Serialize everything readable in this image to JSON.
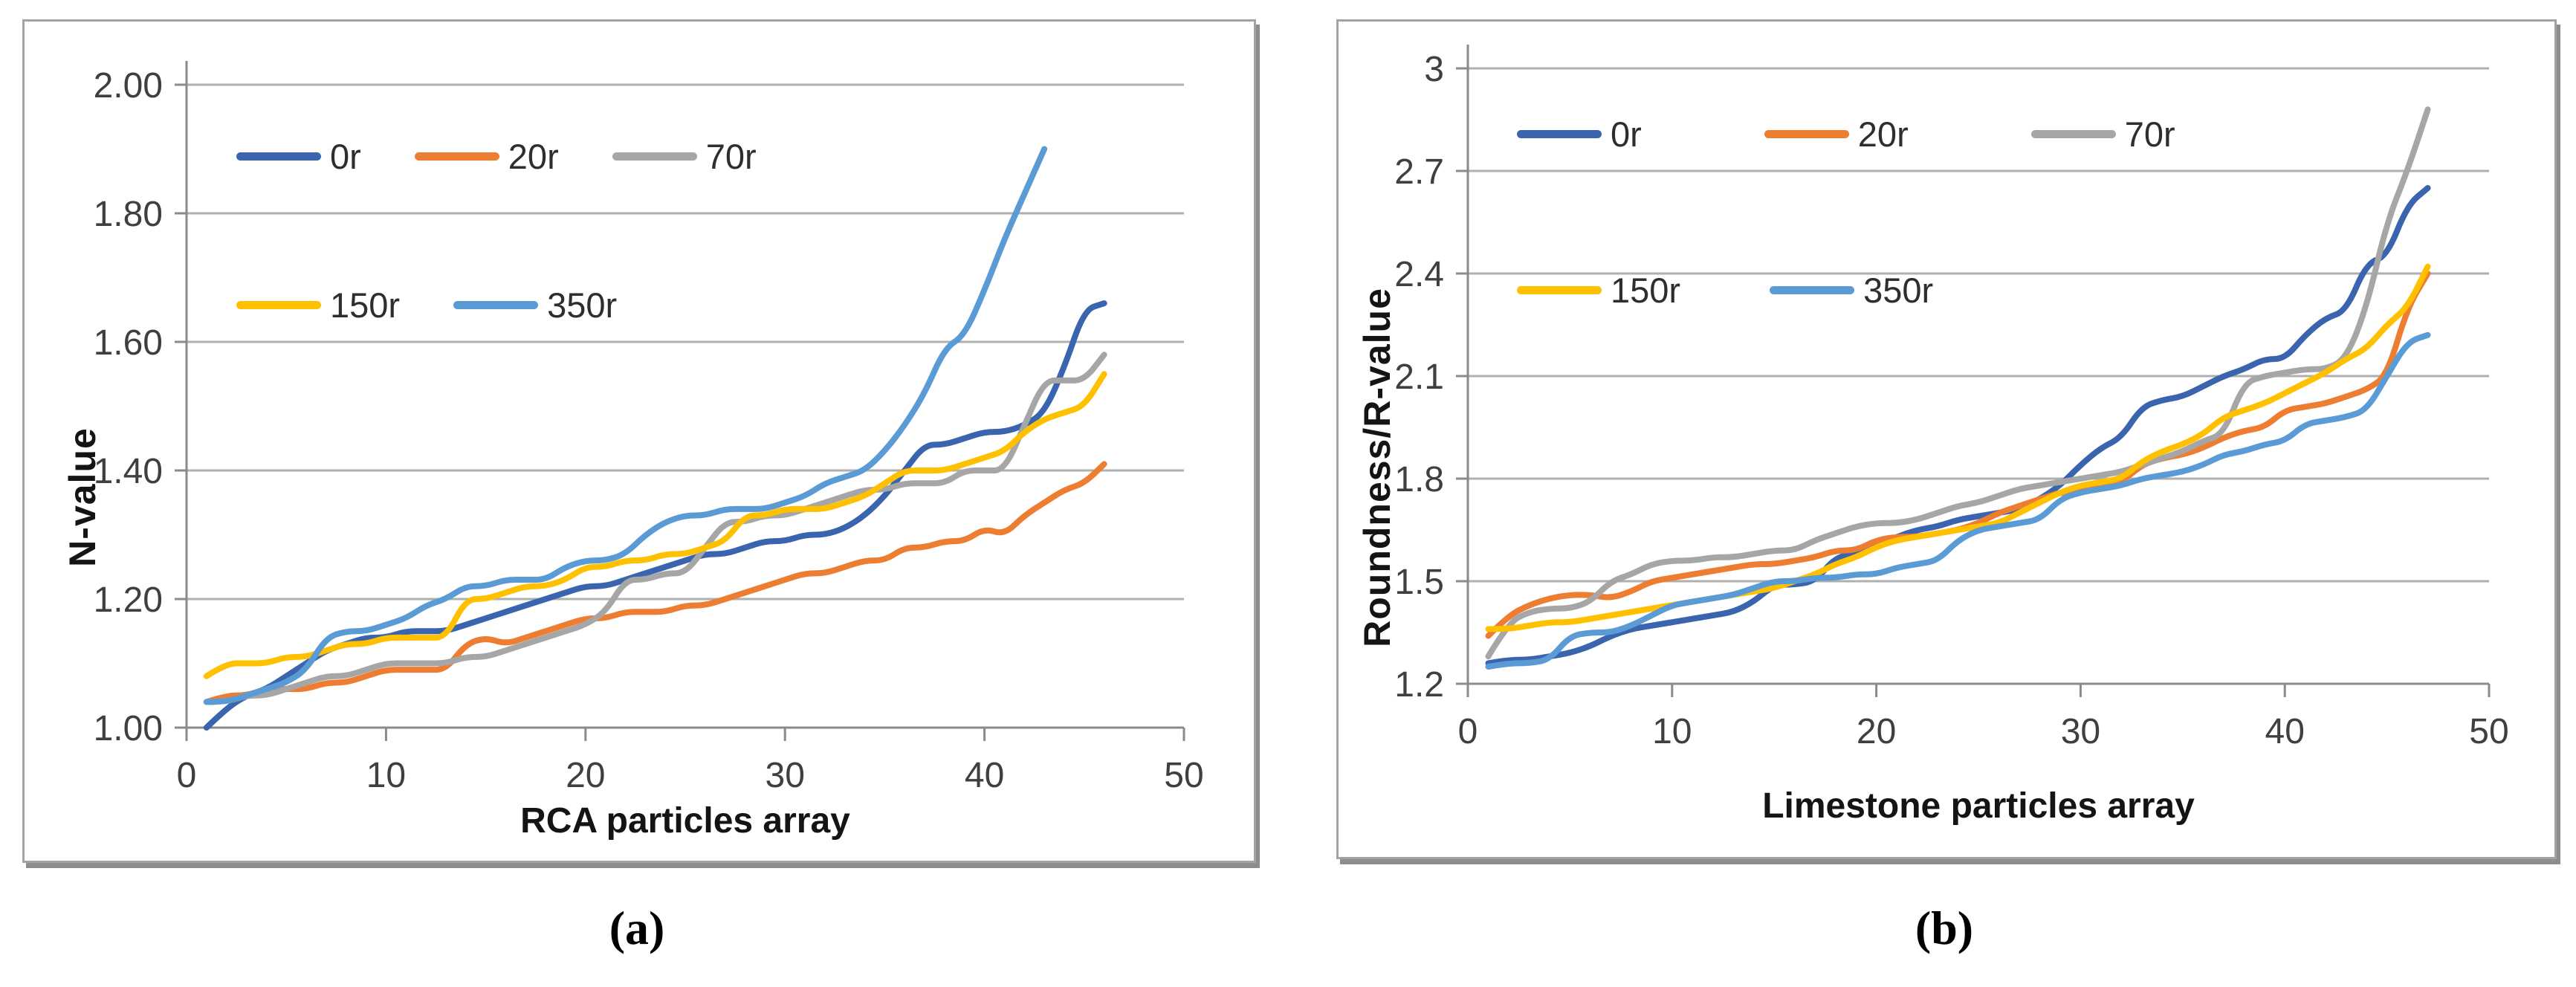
{
  "figure": {
    "panels": [
      {
        "caption": "(a)"
      },
      {
        "caption": "(b)"
      }
    ]
  },
  "chart_data": [
    {
      "type": "line",
      "title": "",
      "xlabel": "RCA particles array",
      "ylabel": "N-value",
      "x_start": 1,
      "xlim": [
        0,
        50
      ],
      "ylim": [
        1.0,
        2.0
      ],
      "xticks": [
        0,
        10,
        20,
        30,
        40,
        50
      ],
      "xtick_labels": [
        "0",
        "10",
        "20",
        "30",
        "40",
        "50"
      ],
      "yticks": [
        1.0,
        1.2,
        1.4,
        1.6,
        1.8,
        2.0
      ],
      "ytick_labels": [
        "1.00",
        "1.20",
        "1.40",
        "1.60",
        "1.80",
        "2.00"
      ],
      "grid": "horizontal",
      "legend_position": "inside-top-left",
      "series": [
        {
          "name": "0r",
          "color": "#3A64AE",
          "values": [
            1.0,
            1.03,
            1.05,
            1.06,
            1.08,
            1.1,
            1.12,
            1.13,
            1.14,
            1.14,
            1.15,
            1.15,
            1.15,
            1.16,
            1.17,
            1.18,
            1.19,
            1.2,
            1.21,
            1.22,
            1.22,
            1.23,
            1.24,
            1.25,
            1.26,
            1.27,
            1.27,
            1.28,
            1.29,
            1.29,
            1.3,
            1.3,
            1.31,
            1.33,
            1.36,
            1.4,
            1.44,
            1.44,
            1.45,
            1.46,
            1.46,
            1.47,
            1.49,
            1.56,
            1.65,
            1.66
          ]
        },
        {
          "name": "20r",
          "color": "#ED7D31",
          "values": [
            1.04,
            1.05,
            1.05,
            1.06,
            1.06,
            1.06,
            1.07,
            1.07,
            1.08,
            1.09,
            1.09,
            1.09,
            1.09,
            1.13,
            1.14,
            1.13,
            1.14,
            1.15,
            1.16,
            1.17,
            1.17,
            1.18,
            1.18,
            1.18,
            1.19,
            1.19,
            1.2,
            1.21,
            1.22,
            1.23,
            1.24,
            1.24,
            1.25,
            1.26,
            1.26,
            1.28,
            1.28,
            1.29,
            1.29,
            1.31,
            1.3,
            1.33,
            1.35,
            1.37,
            1.38,
            1.41
          ]
        },
        {
          "name": "70r",
          "color": "#A6A6A6",
          "values": [
            1.04,
            1.04,
            1.05,
            1.05,
            1.06,
            1.07,
            1.08,
            1.08,
            1.09,
            1.1,
            1.1,
            1.1,
            1.1,
            1.11,
            1.11,
            1.12,
            1.13,
            1.14,
            1.15,
            1.16,
            1.18,
            1.23,
            1.23,
            1.24,
            1.24,
            1.28,
            1.32,
            1.32,
            1.33,
            1.33,
            1.34,
            1.35,
            1.36,
            1.37,
            1.37,
            1.38,
            1.38,
            1.38,
            1.4,
            1.4,
            1.4,
            1.47,
            1.54,
            1.54,
            1.54,
            1.58
          ]
        },
        {
          "name": "150r",
          "color": "#FFC000",
          "values": [
            1.08,
            1.1,
            1.1,
            1.1,
            1.11,
            1.11,
            1.12,
            1.13,
            1.13,
            1.14,
            1.14,
            1.14,
            1.14,
            1.2,
            1.2,
            1.21,
            1.22,
            1.22,
            1.23,
            1.25,
            1.25,
            1.26,
            1.26,
            1.27,
            1.27,
            1.28,
            1.29,
            1.33,
            1.33,
            1.34,
            1.34,
            1.34,
            1.35,
            1.36,
            1.38,
            1.4,
            1.4,
            1.4,
            1.41,
            1.42,
            1.43,
            1.46,
            1.48,
            1.49,
            1.5,
            1.55
          ]
        },
        {
          "name": "350r",
          "color": "#5B9BD5",
          "values": [
            1.04,
            1.04,
            1.05,
            1.06,
            1.07,
            1.09,
            1.14,
            1.15,
            1.15,
            1.16,
            1.17,
            1.19,
            1.2,
            1.22,
            1.22,
            1.23,
            1.23,
            1.23,
            1.25,
            1.26,
            1.26,
            1.27,
            1.3,
            1.32,
            1.33,
            1.33,
            1.34,
            1.34,
            1.34,
            1.35,
            1.36,
            1.38,
            1.39,
            1.4,
            1.43,
            1.47,
            1.52,
            1.59,
            1.61,
            1.68,
            1.76,
            1.83,
            1.9
          ]
        }
      ]
    },
    {
      "type": "line",
      "title": "",
      "xlabel": "Limestone particles array",
      "ylabel": "Roundness/R-value",
      "x_start": 1,
      "xlim": [
        0,
        50
      ],
      "ylim": [
        1.2,
        3.0
      ],
      "xticks": [
        0,
        10,
        20,
        30,
        40,
        50
      ],
      "xtick_labels": [
        "0",
        "10",
        "20",
        "30",
        "40",
        "50"
      ],
      "yticks": [
        1.2,
        1.5,
        1.8,
        2.1,
        2.4,
        2.7,
        3.0
      ],
      "ytick_labels": [
        "1.2",
        "1.5",
        "1.8",
        "2.1",
        "2.4",
        "2.7",
        "3"
      ],
      "grid": "horizontal",
      "legend_position": "inside-top-left",
      "series": [
        {
          "name": "0r",
          "color": "#3A64AE",
          "values": [
            1.26,
            1.27,
            1.27,
            1.28,
            1.29,
            1.31,
            1.34,
            1.36,
            1.37,
            1.38,
            1.39,
            1.4,
            1.41,
            1.44,
            1.49,
            1.49,
            1.5,
            1.57,
            1.58,
            1.6,
            1.63,
            1.65,
            1.66,
            1.68,
            1.69,
            1.7,
            1.71,
            1.74,
            1.78,
            1.84,
            1.89,
            1.92,
            2.01,
            2.03,
            2.04,
            2.07,
            2.1,
            2.12,
            2.15,
            2.15,
            2.22,
            2.27,
            2.29,
            2.43,
            2.45,
            2.6,
            2.65
          ]
        },
        {
          "name": "20r",
          "color": "#ED7D31",
          "values": [
            1.34,
            1.4,
            1.43,
            1.45,
            1.46,
            1.46,
            1.45,
            1.47,
            1.5,
            1.51,
            1.52,
            1.53,
            1.54,
            1.55,
            1.55,
            1.56,
            1.57,
            1.59,
            1.59,
            1.62,
            1.63,
            1.63,
            1.64,
            1.65,
            1.67,
            1.7,
            1.72,
            1.74,
            1.76,
            1.76,
            1.78,
            1.79,
            1.84,
            1.86,
            1.87,
            1.89,
            1.92,
            1.94,
            1.95,
            2.0,
            2.01,
            2.02,
            2.04,
            2.06,
            2.1,
            2.3,
            2.4
          ]
        },
        {
          "name": "70r",
          "color": "#A6A6A6",
          "values": [
            1.28,
            1.38,
            1.41,
            1.42,
            1.42,
            1.44,
            1.5,
            1.52,
            1.55,
            1.56,
            1.56,
            1.57,
            1.57,
            1.58,
            1.59,
            1.59,
            1.62,
            1.64,
            1.66,
            1.67,
            1.67,
            1.68,
            1.7,
            1.72,
            1.73,
            1.75,
            1.77,
            1.78,
            1.79,
            1.8,
            1.81,
            1.82,
            1.84,
            1.86,
            1.88,
            1.91,
            1.93,
            2.08,
            2.1,
            2.11,
            2.12,
            2.12,
            2.15,
            2.3,
            2.55,
            2.7,
            2.88
          ]
        },
        {
          "name": "150r",
          "color": "#FFC000",
          "values": [
            1.36,
            1.36,
            1.37,
            1.38,
            1.38,
            1.39,
            1.4,
            1.41,
            1.42,
            1.43,
            1.44,
            1.45,
            1.46,
            1.47,
            1.48,
            1.5,
            1.52,
            1.55,
            1.57,
            1.6,
            1.62,
            1.63,
            1.64,
            1.65,
            1.66,
            1.67,
            1.7,
            1.73,
            1.76,
            1.78,
            1.79,
            1.8,
            1.85,
            1.88,
            1.9,
            1.93,
            1.98,
            2.0,
            2.02,
            2.05,
            2.08,
            2.11,
            2.15,
            2.18,
            2.25,
            2.3,
            2.42
          ]
        },
        {
          "name": "350r",
          "color": "#5B9BD5",
          "values": [
            1.25,
            1.26,
            1.26,
            1.27,
            1.34,
            1.35,
            1.35,
            1.37,
            1.4,
            1.43,
            1.44,
            1.45,
            1.46,
            1.48,
            1.5,
            1.5,
            1.51,
            1.51,
            1.52,
            1.52,
            1.54,
            1.55,
            1.56,
            1.62,
            1.65,
            1.66,
            1.67,
            1.68,
            1.74,
            1.76,
            1.77,
            1.78,
            1.8,
            1.81,
            1.82,
            1.84,
            1.87,
            1.88,
            1.9,
            1.91,
            1.96,
            1.97,
            1.98,
            2.0,
            2.1,
            2.2,
            2.22
          ]
        }
      ]
    }
  ]
}
